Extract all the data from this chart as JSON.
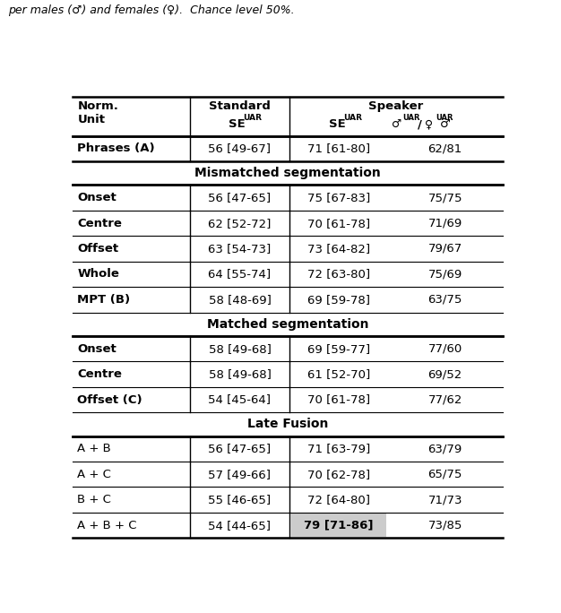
{
  "caption": "per males (♂) and females (♀).  Chance level 50%.",
  "highlight_color": "#cccccc",
  "background_color": "#ffffff",
  "rows": [
    {
      "type": "data",
      "bold_col0": true,
      "cells": [
        "Phrases (A)",
        "56 [49-67]",
        "71 [61-80]",
        "62/81"
      ],
      "highlight_col2": false
    },
    {
      "type": "section",
      "label": "Mismatched segmentation"
    },
    {
      "type": "data",
      "bold_col0": true,
      "cells": [
        "Onset",
        "56 [47-65]",
        "75 [67-83]",
        "75/75"
      ],
      "highlight_col2": false
    },
    {
      "type": "data",
      "bold_col0": true,
      "cells": [
        "Centre",
        "62 [52-72]",
        "70 [61-78]",
        "71/69"
      ],
      "highlight_col2": false
    },
    {
      "type": "data",
      "bold_col0": true,
      "cells": [
        "Offset",
        "63 [54-73]",
        "73 [64-82]",
        "79/67"
      ],
      "highlight_col2": false
    },
    {
      "type": "data",
      "bold_col0": true,
      "cells": [
        "Whole",
        "64 [55-74]",
        "72 [63-80]",
        "75/69"
      ],
      "highlight_col2": false
    },
    {
      "type": "data",
      "bold_col0": true,
      "cells": [
        "MPT (B)",
        "58 [48-69]",
        "69 [59-78]",
        "63/75"
      ],
      "highlight_col2": false
    },
    {
      "type": "section",
      "label": "Matched segmentation"
    },
    {
      "type": "data",
      "bold_col0": true,
      "cells": [
        "Onset",
        "58 [49-68]",
        "69 [59-77]",
        "77/60"
      ],
      "highlight_col2": false
    },
    {
      "type": "data",
      "bold_col0": true,
      "cells": [
        "Centre",
        "58 [49-68]",
        "61 [52-70]",
        "69/52"
      ],
      "highlight_col2": false
    },
    {
      "type": "data",
      "bold_col0": true,
      "cells": [
        "Offset (C)",
        "54 [45-64]",
        "70 [61-78]",
        "77/62"
      ],
      "highlight_col2": false
    },
    {
      "type": "section",
      "label": "Late Fusion"
    },
    {
      "type": "data",
      "bold_col0": false,
      "cells": [
        "A + B",
        "56 [47-65]",
        "71 [63-79]",
        "63/79"
      ],
      "highlight_col2": false
    },
    {
      "type": "data",
      "bold_col0": false,
      "cells": [
        "A + C",
        "57 [49-66]",
        "70 [62-78]",
        "65/75"
      ],
      "highlight_col2": false
    },
    {
      "type": "data",
      "bold_col0": false,
      "cells": [
        "B + C",
        "55 [46-65]",
        "72 [64-80]",
        "71/73"
      ],
      "highlight_col2": false
    },
    {
      "type": "data",
      "bold_col0": false,
      "cells": [
        "A + B + C",
        "54 [44-65]",
        "79 [71-86]",
        "73/85"
      ],
      "highlight_col2": true
    }
  ]
}
